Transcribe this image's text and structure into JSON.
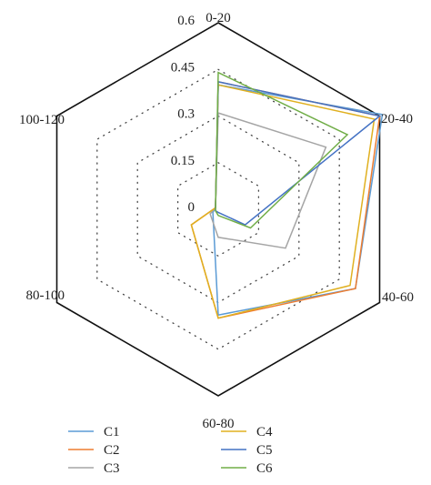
{
  "chart_data": {
    "type": "radar",
    "categories": [
      "0-20",
      "20-40",
      "40-60",
      "60-80",
      "80-100",
      "100-120"
    ],
    "ticks": [
      "0",
      "0.15",
      "0.3",
      "0.45",
      "0.6"
    ],
    "range": [
      0,
      0.6
    ],
    "grid": "dotted",
    "legend_position": "bottom",
    "series": [
      {
        "name": "C1",
        "color": "#5b9bd5",
        "values": [
          0.4,
          0.61,
          0.51,
          0.34,
          0.02,
          0.01
        ]
      },
      {
        "name": "C2",
        "color": "#ed7d31",
        "values": [
          0.41,
          0.6,
          0.51,
          0.35,
          0.1,
          0.01
        ]
      },
      {
        "name": "C3",
        "color": "#a5a5a5",
        "values": [
          0.31,
          0.4,
          0.25,
          0.09,
          0.03,
          0.01
        ]
      },
      {
        "name": "C4",
        "color": "#e0b020",
        "values": [
          0.4,
          0.58,
          0.49,
          0.35,
          0.1,
          0.01
        ]
      },
      {
        "name": "C5",
        "color": "#4472c4",
        "values": [
          0.41,
          0.6,
          0.1,
          0.01,
          0.01,
          0.01
        ]
      },
      {
        "name": "C6",
        "color": "#70ad47",
        "values": [
          0.44,
          0.48,
          0.12,
          0.02,
          0.01,
          0.01
        ]
      }
    ]
  }
}
